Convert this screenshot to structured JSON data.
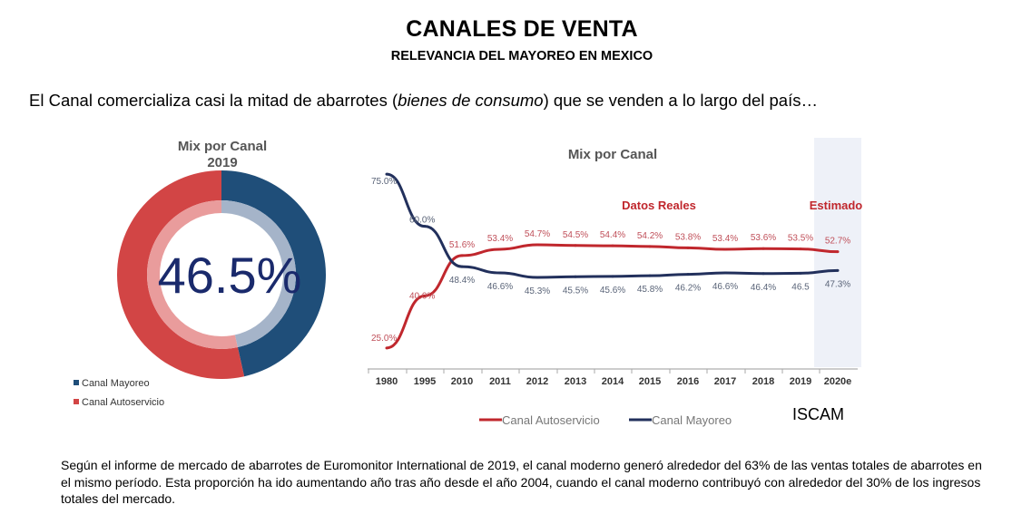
{
  "header": {
    "title": "CANALES DE VENTA",
    "subtitle": "RELEVANCIA DEL MAYOREO EN MEXICO"
  },
  "intro": {
    "before": "El Canal comercializa casi la mitad de abarrotes (",
    "italic": "bienes de consumo",
    "after": ") que se venden a lo largo del país…"
  },
  "colors": {
    "mayoreo": "#1f4e79",
    "autoservicio": "#d24545",
    "mayoreo_light": "#a5b4c9",
    "autoservicio_light": "#e99c9c",
    "line_mayoreo": "#22305c",
    "line_autoservicio": "#c0272d",
    "estimate_band": "#eef1f8"
  },
  "chart_data": [
    {
      "type": "pie",
      "title": "Mix por Canal",
      "subtitle": "2019",
      "center_label": "46.5%",
      "slices": [
        {
          "name": "Canal Mayoreo",
          "value": 46.5
        },
        {
          "name": "Canal Autoservicio",
          "value": 53.5
        }
      ],
      "legend": [
        "Canal Mayoreo",
        "Canal Autoservicio"
      ],
      "legend_position": "bottom-left"
    },
    {
      "type": "line",
      "title": "Mix por Canal",
      "categories": [
        "1980",
        "1995",
        "2010",
        "2011",
        "2012",
        "2013",
        "2014",
        "2015",
        "2016",
        "2017",
        "2018",
        "2019",
        "2020e"
      ],
      "series": [
        {
          "name": "Canal Autoservicio",
          "values": [
            25.0,
            40.0,
            51.6,
            53.4,
            54.7,
            54.5,
            54.4,
            54.2,
            53.8,
            53.4,
            53.6,
            53.5,
            52.7
          ],
          "labels": [
            "25.0%",
            "40.0%",
            "51.6%",
            "53.4%",
            "54.7%",
            "54.5%",
            "54.4%",
            "54.2%",
            "53.8%",
            "53.4%",
            "53.6%",
            "53.5%",
            "52.7%"
          ]
        },
        {
          "name": "Canal Mayoreo",
          "values": [
            75.0,
            60.0,
            48.4,
            46.6,
            45.3,
            45.5,
            45.6,
            45.8,
            46.2,
            46.6,
            46.4,
            46.5,
            47.3
          ],
          "labels": [
            "75.0%",
            "60.0%",
            "48.4%",
            "46.6%",
            "45.3%",
            "45.5%",
            "45.6%",
            "45.8%",
            "46.2%",
            "46.6%",
            "46.4%",
            "46.5",
            "47.3%"
          ]
        }
      ],
      "annotations": {
        "real": "Datos Reales",
        "estimated": "Estimado"
      },
      "estimated_category": "2020e",
      "ylim": [
        20,
        80
      ],
      "legend_position": "bottom",
      "grid": false
    }
  ],
  "source": "ISCAM",
  "footer": {
    "paragraph": "Según el informe de mercado de abarrotes de Euromonitor International de 2019, el canal moderno generó alrededor del 63% de las ventas totales de abarrotes en el mismo período. Esta proporción ha ido aumentando año tras año desde el año 2004, cuando el canal moderno contribuyó con alrededor del 30% de los ingresos totales del mercado."
  }
}
